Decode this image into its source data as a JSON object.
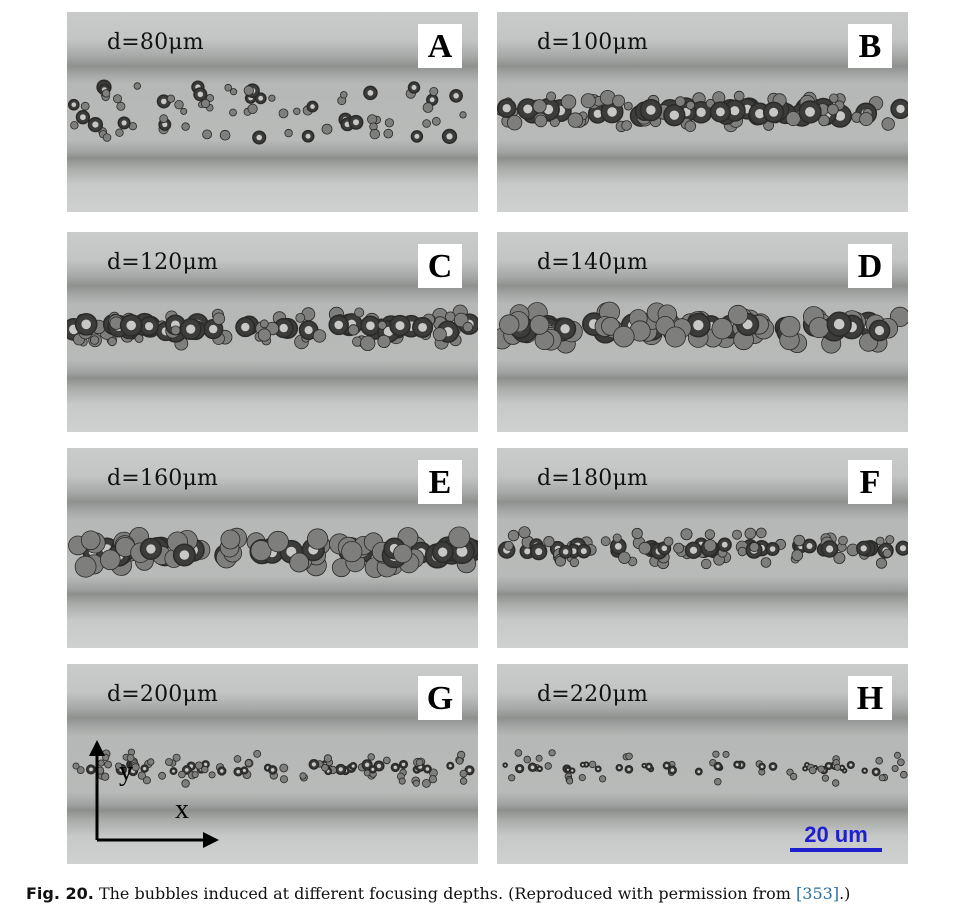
{
  "figure": {
    "panels": [
      {
        "depth": "d=80μm",
        "letter": "A",
        "density": 0.45,
        "bubble_size": "mixed-clusters"
      },
      {
        "depth": "d=100μm",
        "letter": "B",
        "density": 0.85,
        "bubble_size": "large-with-small"
      },
      {
        "depth": "d=120μm",
        "letter": "C",
        "density": 0.8,
        "bubble_size": "large-with-small"
      },
      {
        "depth": "d=140μm",
        "letter": "D",
        "density": 0.7,
        "bubble_size": "large"
      },
      {
        "depth": "d=160μm",
        "letter": "E",
        "density": 0.75,
        "bubble_size": "large"
      },
      {
        "depth": "d=180μm",
        "letter": "F",
        "density": 0.8,
        "bubble_size": "medium"
      },
      {
        "depth": "d=200μm",
        "letter": "G",
        "density": 0.8,
        "bubble_size": "small"
      },
      {
        "depth": "d=220μm",
        "letter": "H",
        "density": 0.45,
        "bubble_size": "small-sparse"
      }
    ],
    "axes": {
      "x_label": "x",
      "y_label": "y"
    },
    "scale_bar": {
      "label": "20 um",
      "color": "#1f1fd0"
    },
    "caption": {
      "label": "Fig. 20.",
      "text": " The bubbles induced at different focusing depths. (Reproduced with permission from ",
      "ref": "[353]",
      "tail": ".)"
    },
    "colors": {
      "reference": "#2a6fa0",
      "panel_background": "#cfd1d1"
    }
  }
}
